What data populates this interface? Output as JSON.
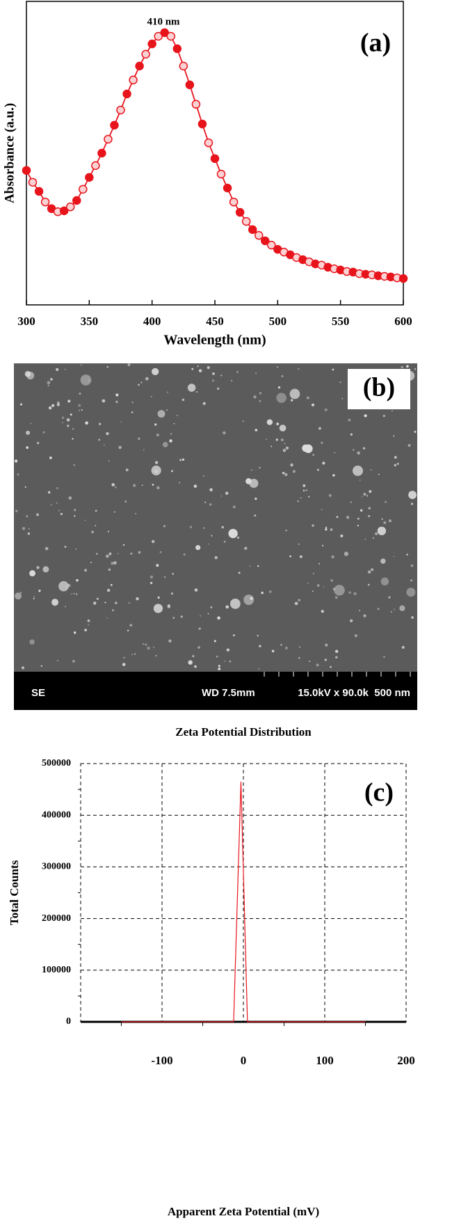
{
  "chart_data": [
    {
      "type": "line",
      "panel_label": "(a)",
      "xlabel": "Wavelength (nm)",
      "ylabel": "Absorbance (a.u.)",
      "annotation": "410 nm",
      "x": [
        300,
        305,
        310,
        315,
        320,
        325,
        330,
        335,
        340,
        345,
        350,
        355,
        360,
        365,
        370,
        375,
        380,
        385,
        390,
        395,
        400,
        405,
        410,
        415,
        420,
        425,
        430,
        435,
        440,
        445,
        450,
        455,
        460,
        465,
        470,
        475,
        480,
        485,
        490,
        495,
        500,
        505,
        510,
        515,
        520,
        525,
        530,
        535,
        540,
        545,
        550,
        555,
        560,
        565,
        570,
        575,
        580,
        585,
        590,
        595,
        600
      ],
      "values": [
        0.443,
        0.404,
        0.374,
        0.339,
        0.317,
        0.307,
        0.31,
        0.323,
        0.344,
        0.381,
        0.42,
        0.459,
        0.5,
        0.546,
        0.592,
        0.642,
        0.695,
        0.741,
        0.787,
        0.826,
        0.86,
        0.885,
        0.897,
        0.885,
        0.844,
        0.787,
        0.725,
        0.661,
        0.596,
        0.534,
        0.482,
        0.431,
        0.385,
        0.339,
        0.305,
        0.275,
        0.248,
        0.229,
        0.211,
        0.197,
        0.183,
        0.174,
        0.165,
        0.156,
        0.149,
        0.142,
        0.135,
        0.131,
        0.124,
        0.119,
        0.115,
        0.11,
        0.108,
        0.103,
        0.101,
        0.099,
        0.096,
        0.094,
        0.092,
        0.089,
        0.087
      ],
      "color": "#e8141c",
      "xlim": [
        300,
        600
      ],
      "ylim": [
        0,
        1
      ],
      "xticks": [
        300,
        350,
        400,
        450,
        500,
        550,
        600
      ]
    },
    {
      "type": "line",
      "panel_label": "(c)",
      "title": "Zeta Potential Distribution",
      "xlabel": "Apparent Zeta Potential (mV)",
      "ylabel": "Total Counts",
      "x": [
        -150,
        -12,
        -3,
        5,
        150
      ],
      "values": [
        0,
        0,
        465000,
        0,
        0
      ],
      "color": "#e8141c",
      "xlim": [
        -200,
        200
      ],
      "ylim": [
        0,
        500000
      ],
      "xticks": [
        -100,
        0,
        100,
        200
      ],
      "yticks": [
        0,
        100000,
        200000,
        300000,
        400000,
        500000
      ],
      "xminorticks": [
        -150,
        -50,
        50,
        150
      ],
      "yminorticks": [
        50000,
        150000,
        250000,
        350000,
        450000
      ],
      "grid": true
    }
  ],
  "sem": {
    "panel_label": "(b)",
    "mode": "SE",
    "working_distance": "WD 7.5mm",
    "settings": "15.0kV x 90.0k  500 nm"
  }
}
